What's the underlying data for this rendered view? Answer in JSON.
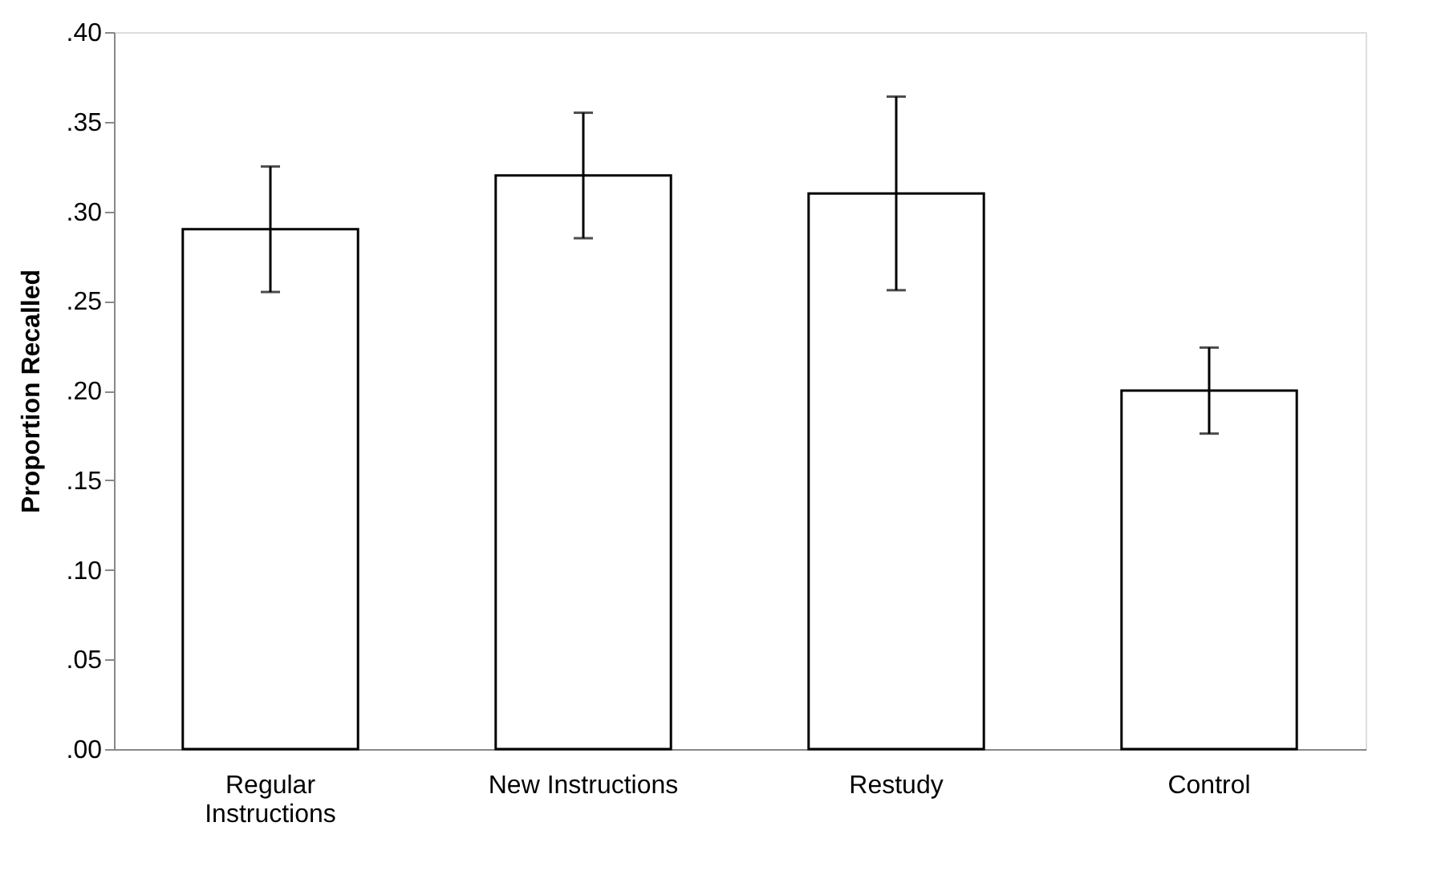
{
  "chart_data": {
    "type": "bar",
    "ylabel": "Proportion Recalled",
    "categories": [
      "Regular Instructions",
      "New Instructions",
      "Restudy",
      "Control"
    ],
    "values": [
      0.29,
      0.32,
      0.31,
      0.2
    ],
    "errors": [
      0.035,
      0.035,
      0.054,
      0.024
    ],
    "color": "#ffffff",
    "ylim": [
      0,
      0.4
    ],
    "yticks": [
      {
        "value": 0,
        "label": ".00"
      },
      {
        "value": 0.05,
        "label": ".05"
      },
      {
        "value": 0.1,
        "label": ".10"
      },
      {
        "value": 0.15,
        "label": ".15"
      },
      {
        "value": 0.2,
        "label": ".20"
      },
      {
        "value": 0.25,
        "label": ".25"
      },
      {
        "value": 0.3,
        "label": ".30"
      },
      {
        "value": 0.35,
        "label": ".35"
      },
      {
        "value": 0.4,
        "label": ".40"
      }
    ],
    "grid": false
  }
}
